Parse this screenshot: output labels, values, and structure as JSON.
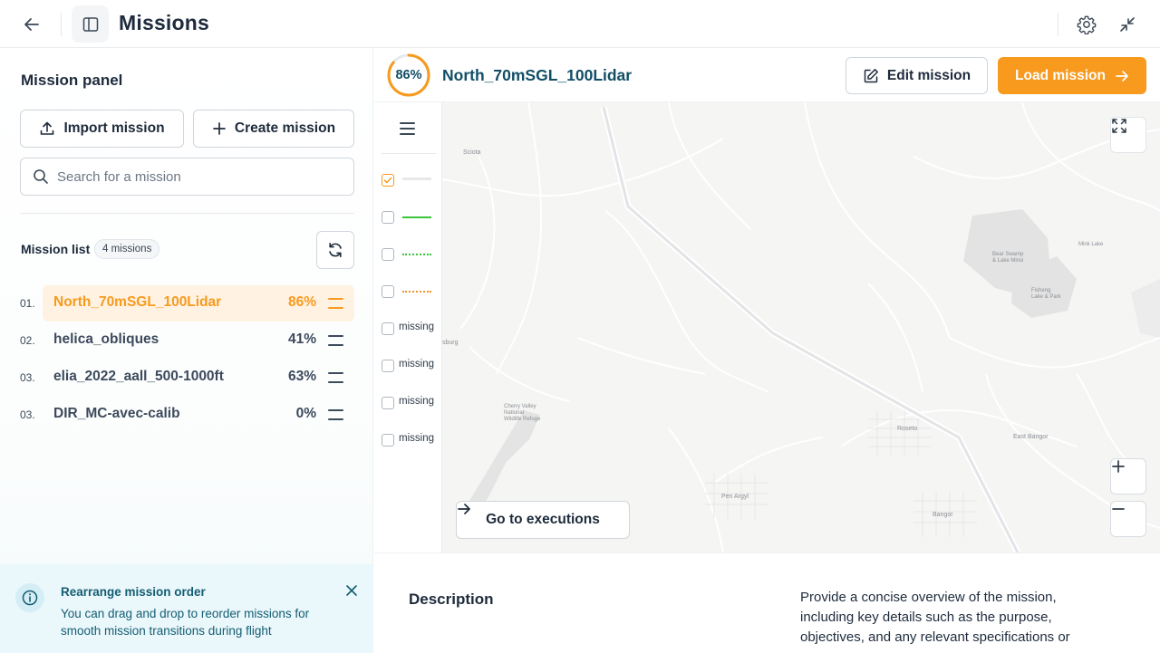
{
  "header": {
    "title": "Missions",
    "icons": {
      "back": "arrow-left-icon",
      "panel": "sidebar-toggle-icon",
      "settings": "gear-icon",
      "collapse": "minimize-icon"
    }
  },
  "panel": {
    "title": "Mission panel",
    "import_label": "Import mission",
    "create_label": "Create mission",
    "search_placeholder": "Search for a mission",
    "search_value": "",
    "list_title": "Mission list",
    "list_count": "4 missions",
    "missions": [
      {
        "index": "01.",
        "name": "North_70mSGL_100Lidar",
        "progress": "86%",
        "active": true
      },
      {
        "index": "02.",
        "name": "helica_obliques",
        "progress": "41%",
        "active": false
      },
      {
        "index": "03.",
        "name": "elia_2022_aall_500-1000ft",
        "progress": "63%",
        "active": false
      },
      {
        "index": "03.",
        "name": "DIR_MC-avec-calib",
        "progress": "0%",
        "active": false
      }
    ],
    "tip": {
      "title": "Rearrange mission order",
      "text": "You can drag and drop to reorder missions for smooth mission transitions during flight"
    }
  },
  "mission": {
    "progress_label": "86%",
    "progress_fraction": 0.86,
    "name": "North_70mSGL_100Lidar",
    "edit_label": "Edit mission",
    "load_label": "Load mission",
    "accent_color": "#f79a1e"
  },
  "layers": [
    {
      "checked": true,
      "style": "flight-path",
      "label": ""
    },
    {
      "checked": false,
      "style": "solid-green",
      "label": ""
    },
    {
      "checked": false,
      "style": "dotted-green",
      "label": ""
    },
    {
      "checked": false,
      "style": "dotted-orange",
      "label": ""
    },
    {
      "checked": false,
      "style": "text",
      "label": "missing"
    },
    {
      "checked": false,
      "style": "text",
      "label": "missing"
    },
    {
      "checked": false,
      "style": "text",
      "label": "missing"
    },
    {
      "checked": false,
      "style": "text",
      "label": "missing"
    }
  ],
  "map": {
    "exec_label": "Go to executions",
    "zoom_in": "+",
    "zoom_out": "−",
    "places": {
      "sciota": "Sciota",
      "burg": "sburg",
      "cherry": "Cherry Valley National Wildlife Refuge",
      "roseto": "Roseto",
      "east_bangor": "East Bangor",
      "pen_argyl": "Pen Argyl",
      "bangor": "Bangor",
      "mink": "Mink Lake",
      "swamp": "Bear Swamp & Lake Minsi",
      "fisheng": "Fisheng Lake & Park"
    }
  },
  "description": {
    "label": "Description",
    "text": "Provide a concise overview of the mission, including key details such as the purpose, objectives, and any relevant specifications or"
  }
}
